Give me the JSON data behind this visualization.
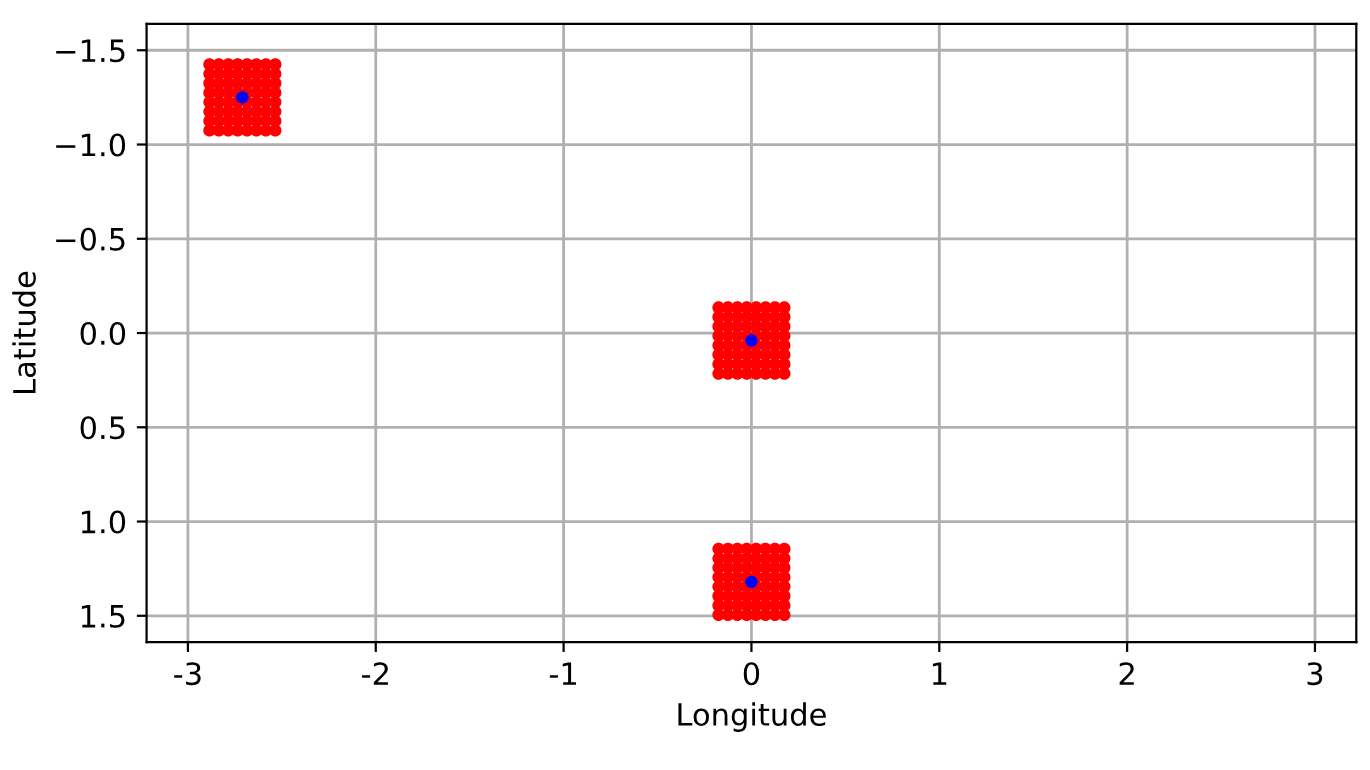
{
  "chart_data": {
    "type": "scatter",
    "xlabel": "Longitude",
    "ylabel": "Latitude",
    "xlim": [
      -3.22,
      3.22
    ],
    "ylim": [
      1.64,
      -1.64
    ],
    "xticks": [
      -3,
      -2,
      -1,
      0,
      1,
      2,
      3
    ],
    "yticks": [
      {
        "value": -1.5,
        "label": "−1.5"
      },
      {
        "value": -1.0,
        "label": "−1.0"
      },
      {
        "value": -0.5,
        "label": "−0.5"
      },
      {
        "value": 0.0,
        "label": "0.0"
      },
      {
        "value": 0.5,
        "label": "0.5"
      },
      {
        "value": 1.0,
        "label": "1.0"
      },
      {
        "value": 1.5,
        "label": "1.5"
      }
    ],
    "grid": true,
    "marker": "circle",
    "series": [
      {
        "color": "#ff0000",
        "x": [
          -2.885,
          -2.835,
          -2.785,
          -2.735,
          -2.685,
          -2.635,
          -2.585,
          -2.535,
          -2.885,
          -2.835,
          -2.785,
          -2.735,
          -2.685,
          -2.635,
          -2.585,
          -2.535,
          -2.885,
          -2.835,
          -2.785,
          -2.735,
          -2.685,
          -2.635,
          -2.585,
          -2.535,
          -2.885,
          -2.835,
          -2.785,
          -2.735,
          -2.685,
          -2.635,
          -2.585,
          -2.535,
          -2.885,
          -2.835,
          -2.785,
          -2.735,
          -2.685,
          -2.635,
          -2.585,
          -2.535,
          -2.885,
          -2.835,
          -2.785,
          -2.735,
          -2.685,
          -2.635,
          -2.585,
          -2.535,
          -2.885,
          -2.835,
          -2.785,
          -2.735,
          -2.685,
          -2.635,
          -2.585,
          -2.535,
          -2.885,
          -2.835,
          -2.785,
          -2.735,
          -2.685,
          -2.635,
          -2.585,
          -2.535
        ],
        "values": [
          -1.425,
          -1.425,
          -1.425,
          -1.425,
          -1.425,
          -1.425,
          -1.425,
          -1.425,
          -1.375,
          -1.375,
          -1.375,
          -1.375,
          -1.375,
          -1.375,
          -1.375,
          -1.375,
          -1.325,
          -1.325,
          -1.325,
          -1.325,
          -1.325,
          -1.325,
          -1.325,
          -1.325,
          -1.275,
          -1.275,
          -1.275,
          -1.275,
          -1.275,
          -1.275,
          -1.275,
          -1.275,
          -1.225,
          -1.225,
          -1.225,
          -1.225,
          -1.225,
          -1.225,
          -1.225,
          -1.225,
          -1.175,
          -1.175,
          -1.175,
          -1.175,
          -1.175,
          -1.175,
          -1.175,
          -1.175,
          -1.125,
          -1.125,
          -1.125,
          -1.125,
          -1.125,
          -1.125,
          -1.125,
          -1.125,
          -1.075,
          -1.075,
          -1.075,
          -1.075,
          -1.075,
          -1.075,
          -1.075,
          -1.075
        ]
      },
      {
        "color": "#ff0000",
        "x": [
          -0.175,
          -0.125,
          -0.075,
          -0.025,
          0.025,
          0.075,
          0.125,
          0.175,
          -0.175,
          -0.125,
          -0.075,
          -0.025,
          0.025,
          0.075,
          0.125,
          0.175,
          -0.175,
          -0.125,
          -0.075,
          -0.025,
          0.025,
          0.075,
          0.125,
          0.175,
          -0.175,
          -0.125,
          -0.075,
          -0.025,
          0.025,
          0.075,
          0.125,
          0.175,
          -0.175,
          -0.125,
          -0.075,
          -0.025,
          0.025,
          0.075,
          0.125,
          0.175,
          -0.175,
          -0.125,
          -0.075,
          -0.025,
          0.025,
          0.075,
          0.125,
          0.175,
          -0.175,
          -0.125,
          -0.075,
          -0.025,
          0.025,
          0.075,
          0.125,
          0.175,
          -0.175,
          -0.125,
          -0.075,
          -0.025,
          0.025,
          0.075,
          0.125,
          0.175
        ],
        "values": [
          -0.135,
          -0.135,
          -0.135,
          -0.135,
          -0.135,
          -0.135,
          -0.135,
          -0.135,
          -0.085,
          -0.085,
          -0.085,
          -0.085,
          -0.085,
          -0.085,
          -0.085,
          -0.085,
          -0.035,
          -0.035,
          -0.035,
          -0.035,
          -0.035,
          -0.035,
          -0.035,
          -0.035,
          0.015,
          0.015,
          0.015,
          0.015,
          0.015,
          0.015,
          0.015,
          0.015,
          0.065,
          0.065,
          0.065,
          0.065,
          0.065,
          0.065,
          0.065,
          0.065,
          0.115,
          0.115,
          0.115,
          0.115,
          0.115,
          0.115,
          0.115,
          0.115,
          0.165,
          0.165,
          0.165,
          0.165,
          0.165,
          0.165,
          0.165,
          0.165,
          0.215,
          0.215,
          0.215,
          0.215,
          0.215,
          0.215,
          0.215,
          0.215
        ]
      },
      {
        "color": "#ff0000",
        "x": [
          -0.175,
          -0.125,
          -0.075,
          -0.025,
          0.025,
          0.075,
          0.125,
          0.175,
          -0.175,
          -0.125,
          -0.075,
          -0.025,
          0.025,
          0.075,
          0.125,
          0.175,
          -0.175,
          -0.125,
          -0.075,
          -0.025,
          0.025,
          0.075,
          0.125,
          0.175,
          -0.175,
          -0.125,
          -0.075,
          -0.025,
          0.025,
          0.075,
          0.125,
          0.175,
          -0.175,
          -0.125,
          -0.075,
          -0.025,
          0.025,
          0.075,
          0.125,
          0.175,
          -0.175,
          -0.125,
          -0.075,
          -0.025,
          0.025,
          0.075,
          0.125,
          0.175,
          -0.175,
          -0.125,
          -0.075,
          -0.025,
          0.025,
          0.075,
          0.125,
          0.175,
          -0.175,
          -0.125,
          -0.075,
          -0.025,
          0.025,
          0.075,
          0.125,
          0.175
        ],
        "values": [
          1.145,
          1.145,
          1.145,
          1.145,
          1.145,
          1.145,
          1.145,
          1.145,
          1.195,
          1.195,
          1.195,
          1.195,
          1.195,
          1.195,
          1.195,
          1.195,
          1.245,
          1.245,
          1.245,
          1.245,
          1.245,
          1.245,
          1.245,
          1.245,
          1.295,
          1.295,
          1.295,
          1.295,
          1.295,
          1.295,
          1.295,
          1.295,
          1.345,
          1.345,
          1.345,
          1.345,
          1.345,
          1.345,
          1.345,
          1.345,
          1.395,
          1.395,
          1.395,
          1.395,
          1.395,
          1.395,
          1.395,
          1.395,
          1.445,
          1.445,
          1.445,
          1.445,
          1.445,
          1.445,
          1.445,
          1.445,
          1.495,
          1.495,
          1.495,
          1.495,
          1.495,
          1.495,
          1.495,
          1.495
        ]
      },
      {
        "color": "#0000ff",
        "x": [
          -2.71,
          0.0,
          0.0
        ],
        "values": [
          -1.25,
          0.04,
          1.32
        ]
      }
    ]
  }
}
